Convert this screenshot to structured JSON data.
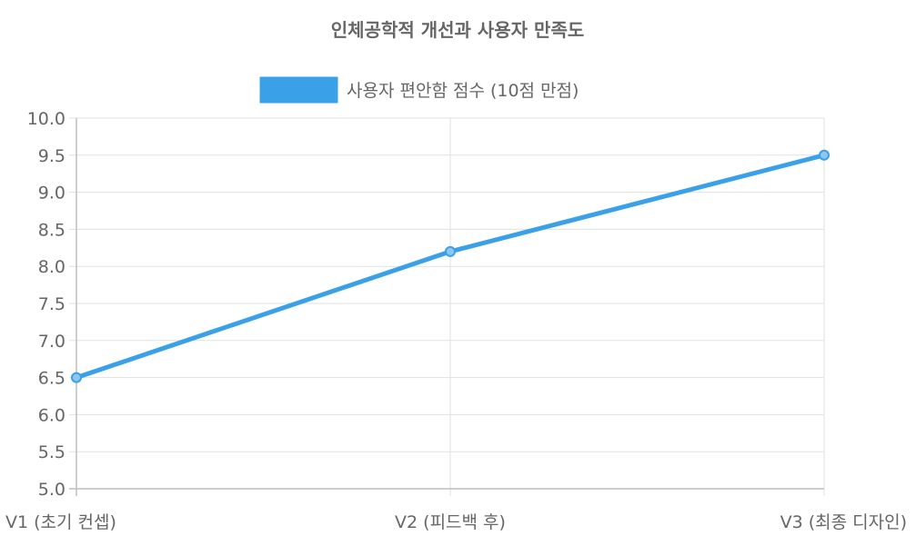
{
  "chart_data": {
    "type": "line",
    "title": "인체공학적 개선과 사용자 만족도",
    "categories": [
      "V1 (초기 컨셉)",
      "V2 (피드백 후)",
      "V3 (최종 디자인)"
    ],
    "series": [
      {
        "name": "사용자 편안함 점수 (10점 만점)",
        "values": [
          6.5,
          8.2,
          9.5
        ],
        "color": "#3aa0e8"
      }
    ],
    "xlabel": "",
    "ylabel": "",
    "ylim": [
      5.0,
      10.0
    ],
    "yticks": [
      "5.0",
      "5.5",
      "6.0",
      "6.5",
      "7.0",
      "7.5",
      "8.0",
      "8.5",
      "9.0",
      "9.5",
      "10.0"
    ],
    "grid": true,
    "legend": "top-center"
  }
}
